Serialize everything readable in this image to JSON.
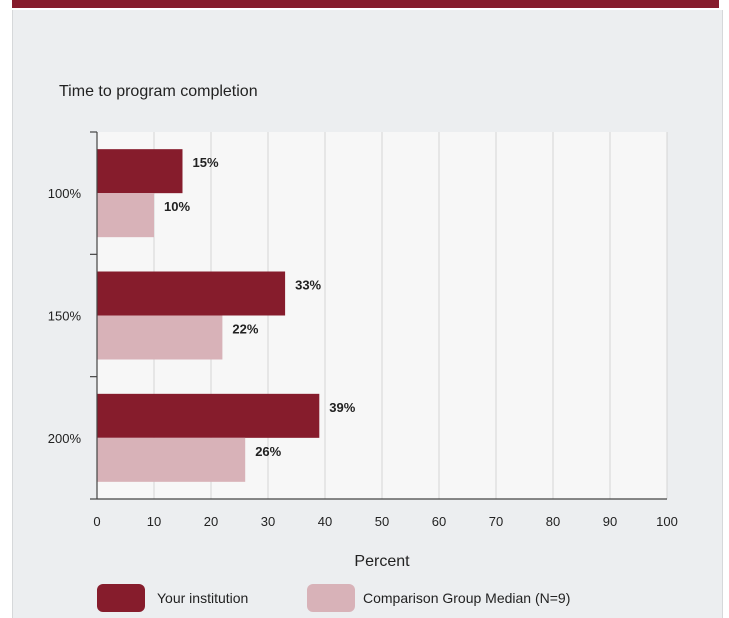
{
  "chart_data": {
    "type": "bar",
    "orientation": "horizontal",
    "title": "Time to program completion",
    "xlabel": "Percent",
    "ylabel": "",
    "xlim": [
      0,
      100
    ],
    "x_ticks": [
      "0",
      "10",
      "20",
      "30",
      "40",
      "50",
      "60",
      "70",
      "80",
      "90",
      "100"
    ],
    "categories": [
      "100%",
      "150%",
      "200%"
    ],
    "series": [
      {
        "name": "Your institution",
        "color": "#861c2c",
        "values": [
          15,
          33,
          39
        ],
        "labels": [
          "15%",
          "33%",
          "39%"
        ]
      },
      {
        "name": "Comparison Group Median (N=9)",
        "color": "#d8b2b8",
        "values": [
          10,
          22,
          26
        ],
        "labels": [
          "10%",
          "22%",
          "26%"
        ]
      }
    ],
    "grid": true,
    "legend": "bottom"
  }
}
